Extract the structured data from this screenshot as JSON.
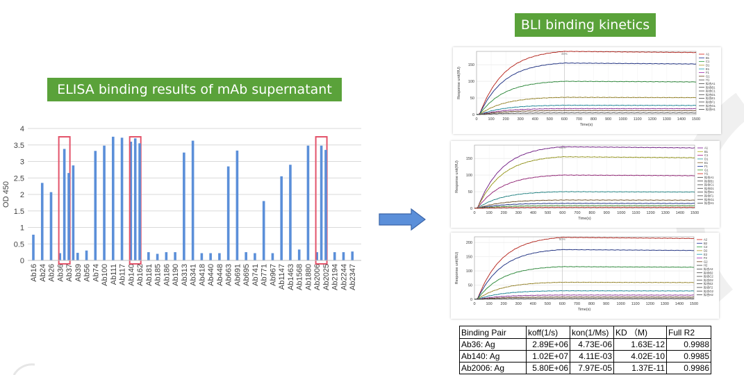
{
  "elisa": {
    "banner": "ELISA binding results of mAb supernatant",
    "chart_data": {
      "type": "bar",
      "title": "",
      "xlabel": "",
      "ylabel": "OD 450",
      "ylim": [
        0,
        4
      ],
      "yticks": [
        "0",
        "0.5",
        "1",
        "1.5",
        "2",
        "2.5",
        "3",
        "3.5",
        "4"
      ],
      "grid": true,
      "color": "#5b8fd9",
      "highlight_color": "#e3536a",
      "categories": [
        "Ab16",
        "Ab24",
        "Ab26",
        "Ab36",
        "Ab37",
        "Ab39",
        "Ab56",
        "Ab74",
        "Ab100",
        "Ab111",
        "Ab117",
        "Ab140",
        "Ab162",
        "Ab181",
        "Ab185",
        "Ab186",
        "Ab190",
        "Ab313",
        "Ab341",
        "Ab418",
        "Ab440",
        "Ab448",
        "Ab663",
        "Ab691",
        "Ab695",
        "Ab741",
        "Ab771",
        "Ab967",
        "Ab1147",
        "Ab1463",
        "Ab1568",
        "Ab1880",
        "Ab2006",
        "Ab2025",
        "Ab2194",
        "Ab2244",
        "Ab2347"
      ],
      "values": [
        0.78,
        2.35,
        2.07,
        0.22,
        2.65,
        0.23,
        0.3,
        3.32,
        3.48,
        3.75,
        3.72,
        3.6,
        3.55,
        0.25,
        0.2,
        0.25,
        0.25,
        3.27,
        3.63,
        0.22,
        0.22,
        0.22,
        2.85,
        3.33,
        0.25,
        0.22,
        1.8,
        0.22,
        2.55,
        2.9,
        0.33,
        3.48,
        0.25,
        3.35,
        0.25,
        0.25,
        0.27
      ],
      "extra_bars_between": [
        {
          "after": "Ab36",
          "value": 3.38
        },
        {
          "after": "Ab37",
          "value": 2.88
        },
        {
          "after": "Ab140",
          "value": 3.7
        },
        {
          "after": "Ab2006",
          "value": 3.48
        }
      ],
      "highlighted": [
        "Ab36",
        "Ab140",
        "Ab2006"
      ]
    }
  },
  "bli": {
    "banner": "BLI binding kinetics",
    "panels": [
      {
        "chart_data": {
          "type": "line",
          "xlabel": "Time(s)",
          "ylabel": "Response unit(RU)",
          "xlim": [
            0,
            1500
          ],
          "ylim": [
            0,
            190
          ],
          "xticks": [
            "0",
            "100",
            "200",
            "300",
            "400",
            "500",
            "600",
            "700",
            "800",
            "900",
            "1000",
            "1100",
            "1200",
            "1300",
            "1400",
            "1500"
          ],
          "yticks": [
            "0",
            "50",
            "100",
            "150"
          ],
          "marker_label": "45%",
          "series": [
            {
              "name": "A1",
              "plateau": 190,
              "color": "#d9342b"
            },
            {
              "name": "B1",
              "plateau": 155,
              "color": "#2a3f9e"
            },
            {
              "name": "C1",
              "plateau": 100,
              "color": "#3aa64a"
            },
            {
              "name": "D1",
              "plateau": 52,
              "color": "#b8a33a"
            },
            {
              "name": "E1",
              "plateau": 28,
              "color": "#29a3b8"
            },
            {
              "name": "F1",
              "plateau": 18,
              "color": "#a83fb5"
            },
            {
              "name": "G1",
              "plateau": 12,
              "color": "#7a5230"
            },
            {
              "name": "H1",
              "plateau": 5,
              "color": "#5a5a5a"
            }
          ],
          "legend": [
            "A1",
            "B1",
            "C1",
            "D1",
            "E1",
            "F1",
            "G1",
            "H1",
            "拟合A1",
            "拟合B1",
            "拟合C1",
            "拟合D1",
            "拟合E1",
            "拟合F1",
            "拟合G1",
            "拟合H1"
          ]
        }
      },
      {
        "chart_data": {
          "type": "line",
          "xlabel": "Time(s)",
          "ylabel": "Response unit(RU)",
          "xlim": [
            0,
            1500
          ],
          "ylim": [
            0,
            190
          ],
          "xticks": [
            "0",
            "100",
            "200",
            "300",
            "400",
            "500",
            "600",
            "700",
            "800",
            "900",
            "1000",
            "1100",
            "1200",
            "1300",
            "1400",
            "1500"
          ],
          "yticks": [
            "0",
            "50",
            "100",
            "150"
          ],
          "marker_label": "45%",
          "series": [
            {
              "name": "A1",
              "plateau": 185,
              "color": "#8a2aa0"
            },
            {
              "name": "B1",
              "plateau": 155,
              "color": "#b5b52a"
            },
            {
              "name": "C1",
              "plateau": 100,
              "color": "#b0308f"
            },
            {
              "name": "D1",
              "plateau": 50,
              "color": "#2fa0a0"
            },
            {
              "name": "E1",
              "plateau": 25,
              "color": "#8a6a3a"
            },
            {
              "name": "F1",
              "plateau": 15,
              "color": "#2a40a0"
            },
            {
              "name": "G1",
              "plateau": 8,
              "color": "#4aa63a"
            },
            {
              "name": "H1",
              "plateau": 3,
              "color": "#d9342b"
            }
          ],
          "legend": [
            "A1",
            "B1",
            "C1",
            "D1",
            "E1",
            "F1",
            "G1",
            "H1",
            "拟合A1",
            "拟合B1",
            "拟合C1",
            "拟合D1",
            "拟合E1",
            "拟合F1",
            "拟合G1",
            "拟合H1"
          ]
        }
      },
      {
        "chart_data": {
          "type": "line",
          "xlabel": "Time(s)",
          "ylabel": "Response unit(RU)",
          "xlim": [
            0,
            1500
          ],
          "ylim": [
            0,
            220
          ],
          "xticks": [
            "0",
            "100",
            "200",
            "300",
            "400",
            "500",
            "600",
            "700",
            "800",
            "900",
            "1000",
            "1100",
            "1200",
            "1300",
            "1400",
            "1500"
          ],
          "yticks": [
            "0",
            "50",
            "100",
            "150",
            "200"
          ],
          "marker_label": "50%",
          "series": [
            {
              "name": "A2",
              "plateau": 218,
              "color": "#d9342b"
            },
            {
              "name": "B2",
              "plateau": 175,
              "color": "#2a3f9e"
            },
            {
              "name": "C2",
              "plateau": 115,
              "color": "#3aa64a"
            },
            {
              "name": "D2",
              "plateau": 60,
              "color": "#b8a33a"
            },
            {
              "name": "E2",
              "plateau": 30,
              "color": "#29a3b8"
            },
            {
              "name": "F2",
              "plateau": 15,
              "color": "#a83fb5"
            },
            {
              "name": "G2",
              "plateau": 8,
              "color": "#7a5230"
            },
            {
              "name": "H2",
              "plateau": 3,
              "color": "#5a5a5a"
            }
          ],
          "legend": [
            "A2",
            "B2",
            "C2",
            "D2",
            "E2",
            "F2",
            "G2",
            "H2",
            "拟合A2",
            "拟合B2",
            "拟合C2",
            "拟合D2",
            "拟合E2",
            "拟合F2",
            "拟合G2",
            "拟合H2"
          ]
        }
      }
    ],
    "table": {
      "headers": [
        "Binding Pair",
        "koff(1/s)",
        "kon(1/Ms)",
        "KD （M)",
        "Full R2"
      ],
      "rows": [
        [
          "Ab36: Ag",
          "2.89E+06",
          "4.73E-06",
          "1.63E-12",
          "0.9988"
        ],
        [
          "Ab140: Ag",
          "1.02E+07",
          "4.11E-03",
          "4.02E-10",
          "0.9985"
        ],
        [
          "Ab2006: Ag",
          "5.80E+06",
          "7.97E-05",
          "1.37E-11",
          "0.9986"
        ]
      ]
    }
  }
}
